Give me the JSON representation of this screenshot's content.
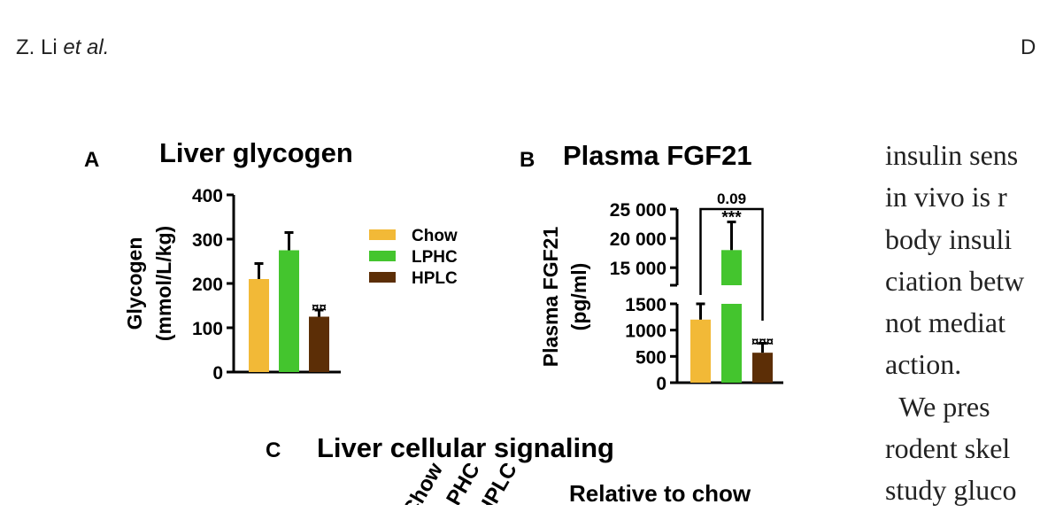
{
  "header": {
    "author": "Z. Li ",
    "etal": "et al.",
    "right": "D"
  },
  "body_text": [
    "insulin sens",
    "in vivo is r",
    "body insuli",
    "ciation betw",
    "not mediat",
    "action.",
    "  We pres",
    "rodent skel",
    "study gluco"
  ],
  "colors": {
    "Chow": "#f2b937",
    "LPHC": "#44c52e",
    "HPLC": "#5c2e06"
  },
  "chart_data": [
    {
      "panel": "A",
      "type": "bar",
      "title": "Liver glycogen",
      "ylabel": "Glycogen",
      "ylabel2": "(mmol/L/kg)",
      "categories": [
        "Chow",
        "LPHC",
        "HPLC"
      ],
      "values": [
        210,
        275,
        125
      ],
      "errors": [
        35,
        40,
        15
      ],
      "annotations": [
        "",
        "",
        "¤¤"
      ],
      "ylim": [
        0,
        400
      ],
      "yticks": [
        "0",
        "100",
        "200",
        "300",
        "400"
      ],
      "legend": [
        "Chow",
        "LPHC",
        "HPLC"
      ],
      "legend_position": "right"
    },
    {
      "panel": "B",
      "type": "bar",
      "title": "Plasma FGF21",
      "ylabel": "Plasma FGF21",
      "ylabel2": "(pg/ml)",
      "categories": [
        "Chow",
        "LPHC",
        "HPLC"
      ],
      "values": [
        1200,
        18000,
        570
      ],
      "errors": [
        300,
        4800,
        180
      ],
      "annotations": [
        "",
        "***",
        "¤¤¤"
      ],
      "bracket_label": "0.09",
      "axis_break": true,
      "ylim_lower": [
        0,
        1500
      ],
      "ylim_upper": [
        12000,
        25000
      ],
      "yticks_lower": [
        "0",
        "500",
        "1000",
        "1500"
      ],
      "yticks_upper": [
        "15 000",
        "20 000",
        "25 000"
      ]
    },
    {
      "panel": "C",
      "type": "heatmap",
      "title": "Liver cellular signaling",
      "header": "Relative to chow",
      "columns": [
        "Chow",
        "LPHC",
        "HPLC"
      ]
    }
  ]
}
